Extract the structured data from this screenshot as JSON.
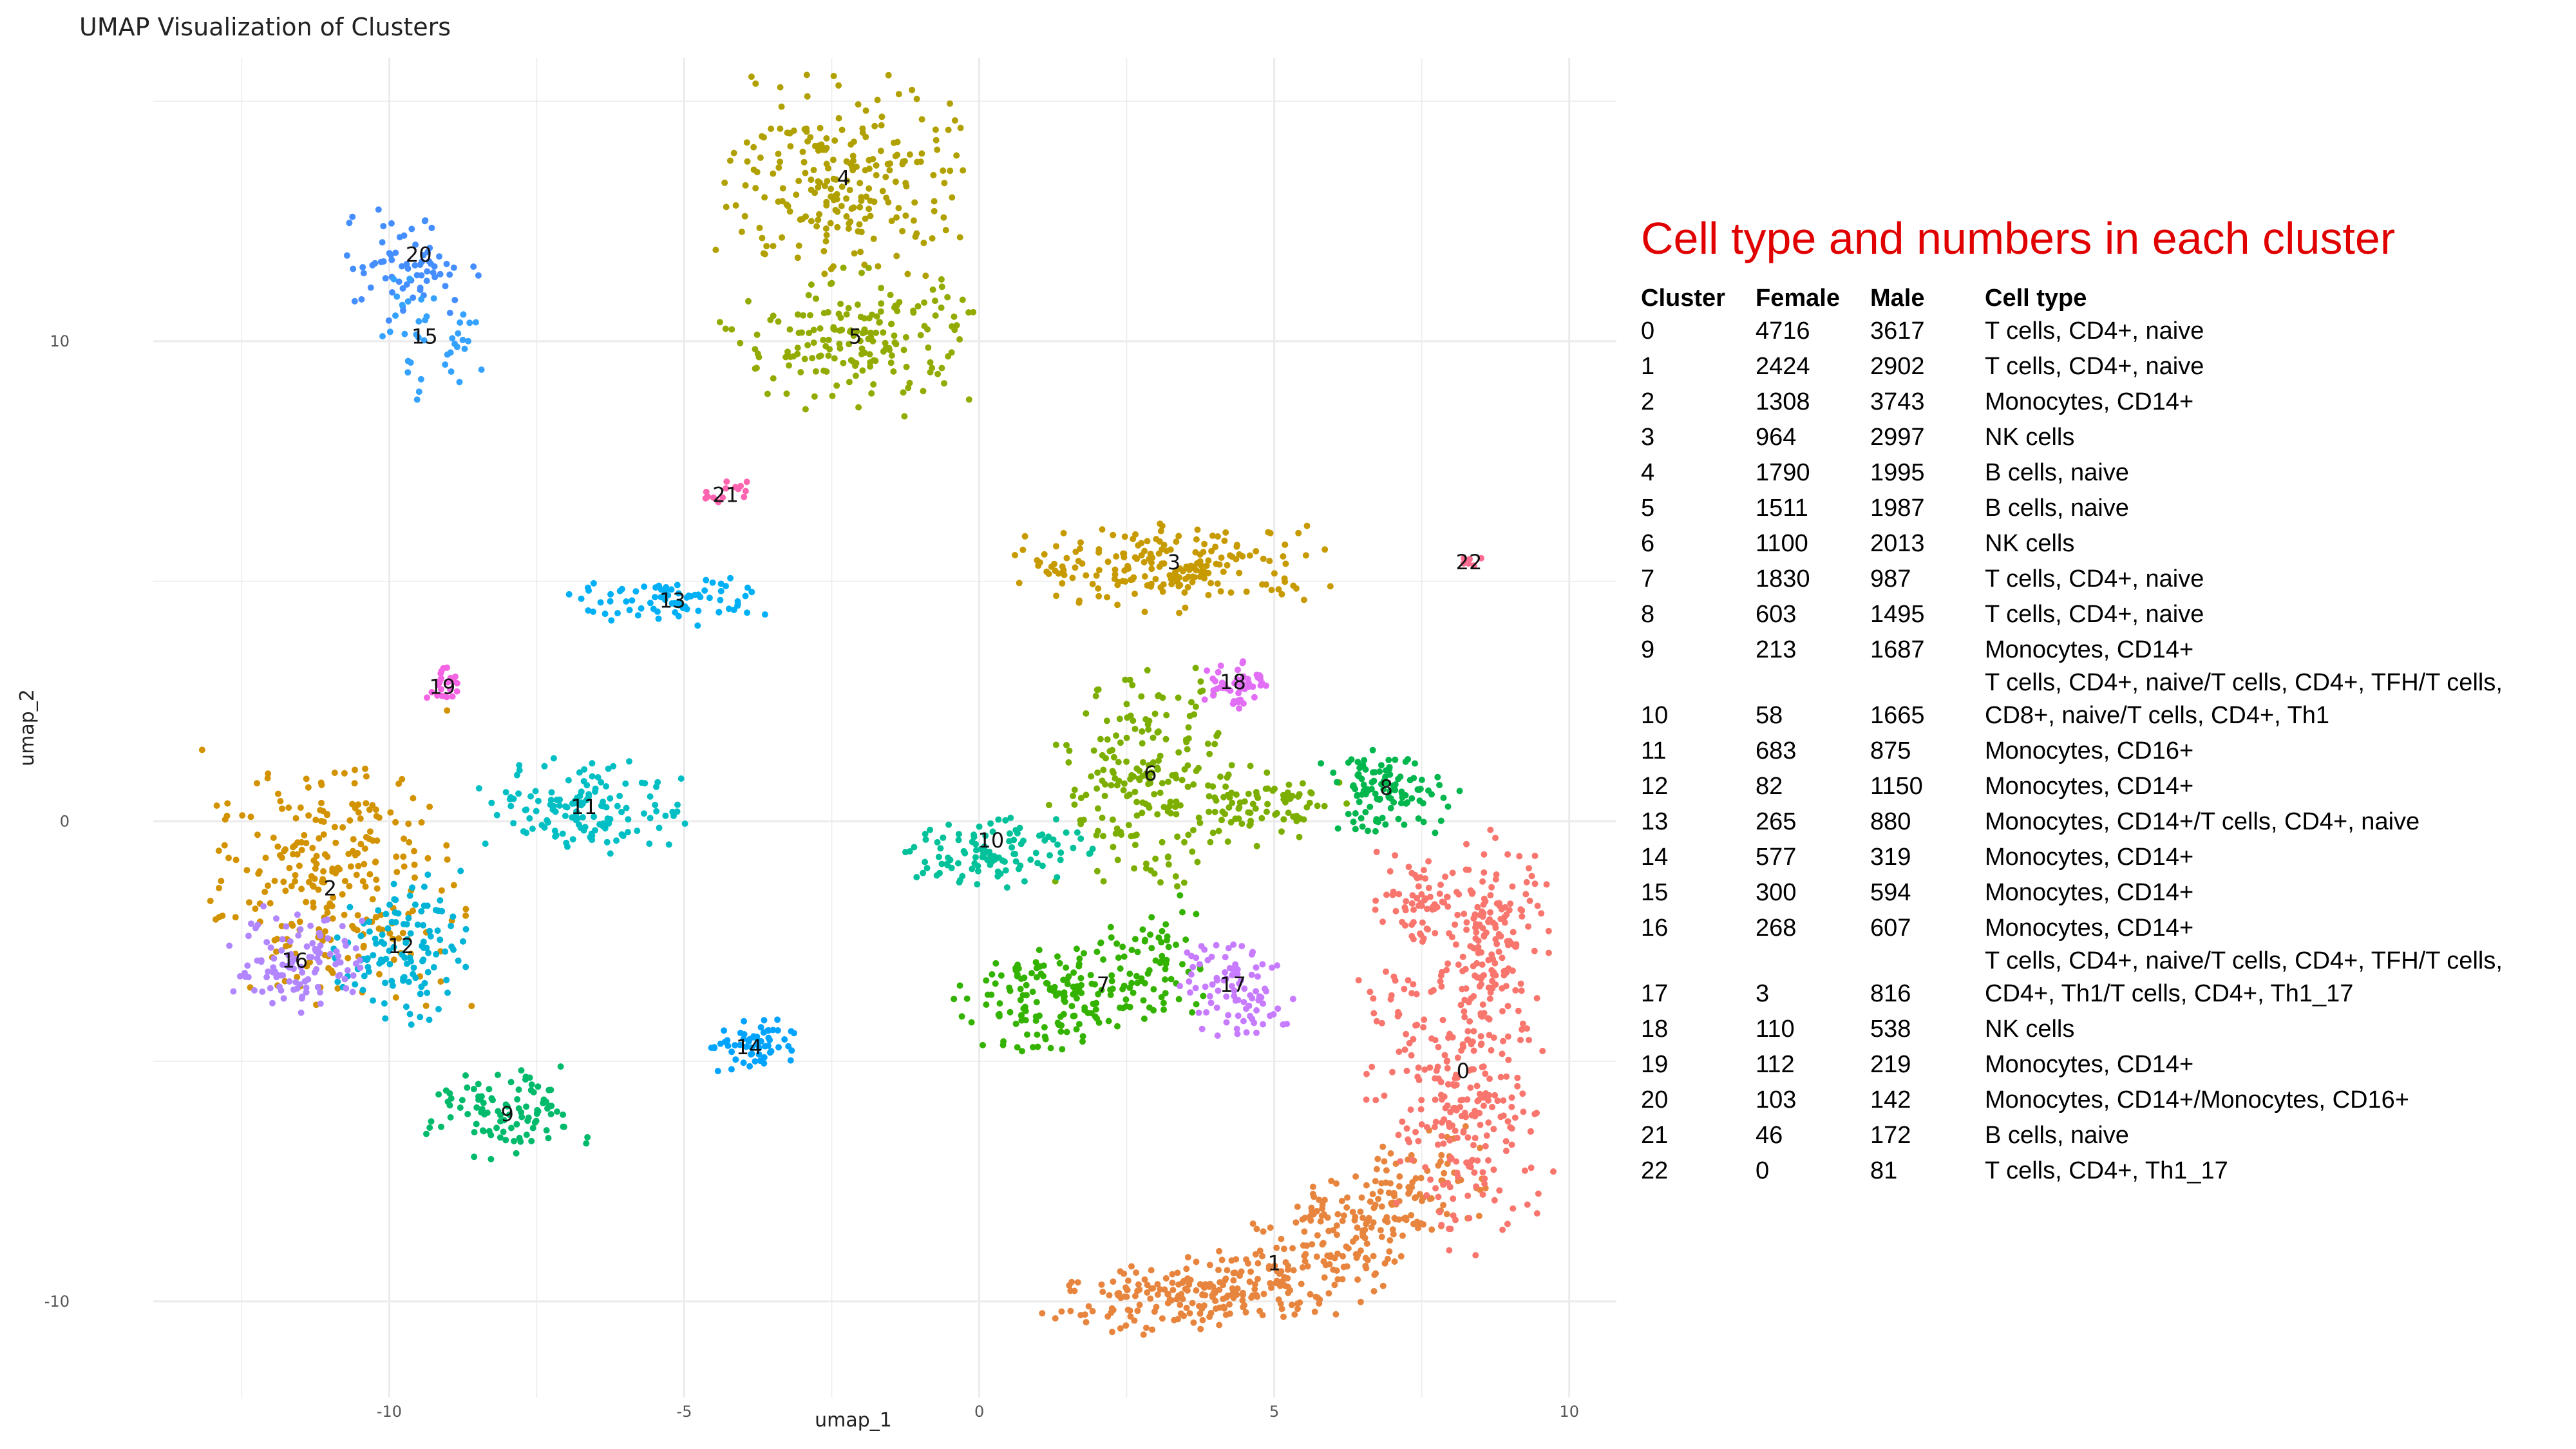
{
  "plot_title": "UMAP Visualization of Clusters",
  "table_heading": "Cell type and numbers in each cluster",
  "table_headers": [
    "Cluster",
    "Female",
    "Male",
    "Cell type"
  ],
  "table_rows": [
    {
      "cluster": "0",
      "female": "4716",
      "male": "3617",
      "cell_type": "T cells, CD4+, naive"
    },
    {
      "cluster": "1",
      "female": "2424",
      "male": "2902",
      "cell_type": "T cells, CD4+, naive"
    },
    {
      "cluster": "2",
      "female": "1308",
      "male": "3743",
      "cell_type": "Monocytes, CD14+"
    },
    {
      "cluster": "3",
      "female": "964",
      "male": "2997",
      "cell_type": "NK cells"
    },
    {
      "cluster": "4",
      "female": "1790",
      "male": "1995",
      "cell_type": "B cells, naive"
    },
    {
      "cluster": "5",
      "female": "1511",
      "male": "1987",
      "cell_type": "B cells, naive"
    },
    {
      "cluster": "6",
      "female": "1100",
      "male": "2013",
      "cell_type": "NK cells"
    },
    {
      "cluster": "7",
      "female": "1830",
      "male": "987",
      "cell_type": "T cells, CD4+, naive"
    },
    {
      "cluster": "8",
      "female": "603",
      "male": "1495",
      "cell_type": "T cells, CD4+, naive"
    },
    {
      "cluster": "9",
      "female": "213",
      "male": "1687",
      "cell_type": "Monocytes, CD14+"
    },
    {
      "cluster": "10",
      "female": "58",
      "male": "1665",
      "cell_type": "T cells, CD4+, naive/T cells, CD4+, TFH/T cells, CD8+, naive/T cells, CD4+, Th1"
    },
    {
      "cluster": "11",
      "female": "683",
      "male": "875",
      "cell_type": "Monocytes, CD16+"
    },
    {
      "cluster": "12",
      "female": "82",
      "male": "1150",
      "cell_type": "Monocytes, CD14+"
    },
    {
      "cluster": "13",
      "female": "265",
      "male": "880",
      "cell_type": "Monocytes, CD14+/T cells, CD4+, naive"
    },
    {
      "cluster": "14",
      "female": "577",
      "male": "319",
      "cell_type": "Monocytes, CD14+"
    },
    {
      "cluster": "15",
      "female": "300",
      "male": "594",
      "cell_type": "Monocytes, CD14+"
    },
    {
      "cluster": "16",
      "female": "268",
      "male": "607",
      "cell_type": "Monocytes, CD14+"
    },
    {
      "cluster": "17",
      "female": "3",
      "male": "816",
      "cell_type": "T cells, CD4+, naive/T cells, CD4+, TFH/T cells, CD4+, Th1/T cells, CD4+, Th1_17"
    },
    {
      "cluster": "18",
      "female": "110",
      "male": "538",
      "cell_type": "NK cells"
    },
    {
      "cluster": "19",
      "female": "112",
      "male": "219",
      "cell_type": "Monocytes, CD14+"
    },
    {
      "cluster": "20",
      "female": "103",
      "male": "142",
      "cell_type": "Monocytes, CD14+/Monocytes, CD16+"
    },
    {
      "cluster": "21",
      "female": "46",
      "male": "172",
      "cell_type": "B cells, naive"
    },
    {
      "cluster": "22",
      "female": "0",
      "male": "81",
      "cell_type": "T cells, CD4+, Th1_17"
    }
  ],
  "chart_data": {
    "type": "scatter",
    "title": "UMAP Visualization of Clusters",
    "xlabel": "umap_1",
    "ylabel": "umap_2",
    "xlim": [
      -14,
      10.8
    ],
    "ylim": [
      -12,
      15.9
    ],
    "xticks": [
      -10,
      -5,
      0,
      5,
      10
    ],
    "yticks": [
      -10,
      0,
      10
    ],
    "grid": true,
    "legend": "none",
    "clusters": [
      {
        "label": "0",
        "center": [
          8.2,
          -5.2
        ],
        "color": "#F8766D"
      },
      {
        "label": "1",
        "center": [
          5.0,
          -9.2
        ],
        "color": "#E7853F"
      },
      {
        "label": "2",
        "center": [
          -11.0,
          -1.4
        ],
        "color": "#D39200"
      },
      {
        "label": "3",
        "center": [
          3.3,
          5.4
        ],
        "color": "#C79A00"
      },
      {
        "label": "4",
        "center": [
          -2.3,
          13.4
        ],
        "color": "#B0A000"
      },
      {
        "label": "5",
        "center": [
          -2.1,
          10.1
        ],
        "color": "#93AA00"
      },
      {
        "label": "6",
        "center": [
          2.9,
          1.0
        ],
        "color": "#7CAE00"
      },
      {
        "label": "7",
        "center": [
          2.1,
          -3.4
        ],
        "color": "#33B200"
      },
      {
        "label": "8",
        "center": [
          6.9,
          0.7
        ],
        "color": "#00B64D"
      },
      {
        "label": "9",
        "center": [
          -8.0,
          -6.1
        ],
        "color": "#00BA6B"
      },
      {
        "label": "10",
        "center": [
          0.2,
          -0.4
        ],
        "color": "#00C19A"
      },
      {
        "label": "11",
        "center": [
          -6.7,
          0.3
        ],
        "color": "#00BFC4"
      },
      {
        "label": "12",
        "center": [
          -9.8,
          -2.6
        ],
        "color": "#00B4D8"
      },
      {
        "label": "13",
        "center": [
          -5.2,
          4.6
        ],
        "color": "#00B0F6"
      },
      {
        "label": "14",
        "center": [
          -3.9,
          -4.7
        ],
        "color": "#00A4FF"
      },
      {
        "label": "15",
        "center": [
          -9.4,
          10.1
        ],
        "color": "#35A2FF"
      },
      {
        "label": "16",
        "center": [
          -11.6,
          -2.9
        ],
        "color": "#B186FF"
      },
      {
        "label": "17",
        "center": [
          4.3,
          -3.4
        ],
        "color": "#C77CFF"
      },
      {
        "label": "18",
        "center": [
          4.3,
          2.9
        ],
        "color": "#E36EF6"
      },
      {
        "label": "19",
        "center": [
          -9.1,
          2.8
        ],
        "color": "#F564E3"
      },
      {
        "label": "20",
        "center": [
          -9.5,
          11.8
        ],
        "color": "#448EFF"
      },
      {
        "label": "21",
        "center": [
          -4.3,
          6.8
        ],
        "color": "#FF64B0"
      },
      {
        "label": "22",
        "center": [
          8.3,
          5.4
        ],
        "color": "#FF6C91"
      }
    ]
  }
}
